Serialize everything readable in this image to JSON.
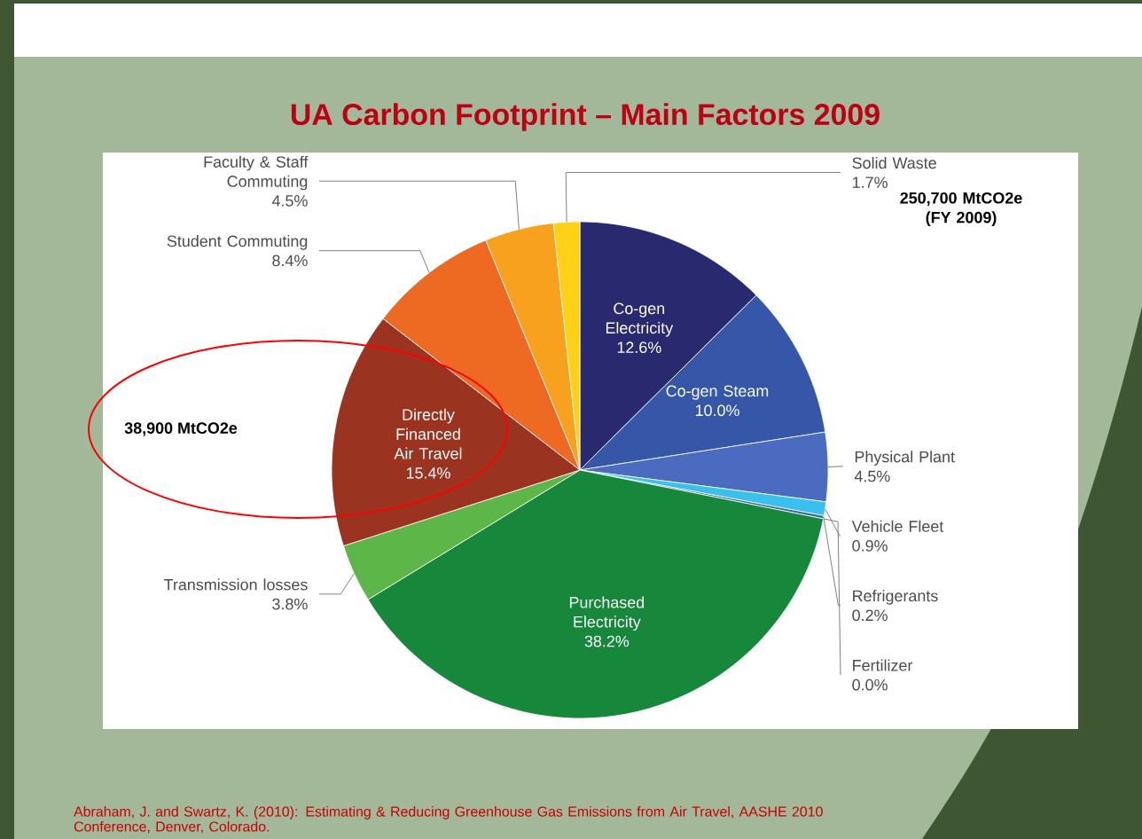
{
  "chart_data": {
    "type": "pie",
    "title": "UA Carbon Footprint – Main Factors 2009",
    "categories": [
      "Co-gen Electricity",
      "Co-gen Steam",
      "Physical Plant",
      "Vehicle Fleet",
      "Refrigerants",
      "Fertilizer",
      "Purchased Electricity",
      "Transmission losses",
      "Directly Financed Air Travel",
      "Student Commuting",
      "Faculty & Staff Commuting",
      "Solid Waste"
    ],
    "values": [
      12.6,
      10.0,
      4.5,
      0.9,
      0.2,
      0.0,
      38.2,
      3.8,
      15.4,
      8.4,
      4.5,
      1.7
    ],
    "value_labels": [
      "12.6%",
      "10.0%",
      "4.5%",
      "0.9%",
      "0.2%",
      "0.0%",
      "38.2%",
      "3.8%",
      "15.4%",
      "8.4%",
      "4.5%",
      "1.7%"
    ],
    "colors": [
      "#28296f",
      "#3656a8",
      "#4a6bbf",
      "#39c0ec",
      "#3a64b4",
      "#2f4f9a",
      "#17873b",
      "#5db748",
      "#9a3421",
      "#ee6a22",
      "#f7a11f",
      "#ffd116"
    ],
    "annotations": [
      "250,700 MtCO2e (FY 2009)",
      "38,900 MtCO2e",
      "Abraham, J. and Swartz, K. (2010): Estimating & Reducing Greenhouse Gas Emissions from Air Travel, AASHE 2010 Conference, Denver, Colorado."
    ]
  }
}
